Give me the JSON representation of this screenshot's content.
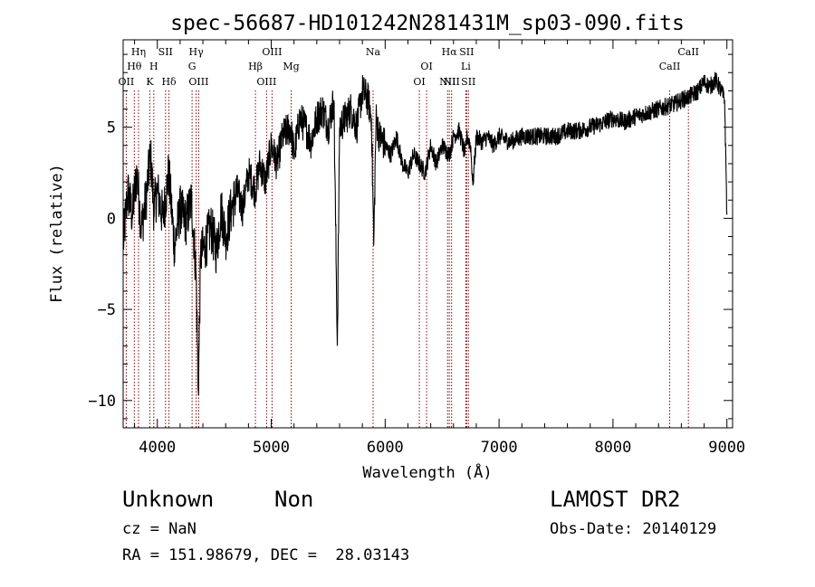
{
  "chart_data": {
    "type": "line",
    "title": "spec-56687-HD101242N281431M_sp03-090.fits",
    "xlabel": "Wavelength (Å)",
    "ylabel": "Flux (relative)",
    "xlim": [
      3700,
      9050
    ],
    "ylim": [
      -11.5,
      9.8
    ],
    "xticks": [
      4000,
      5000,
      6000,
      7000,
      8000,
      9000
    ],
    "yticks": [
      -10,
      -5,
      0,
      5
    ],
    "grid": false,
    "line_color": "#000000",
    "marker_color": "#8b0000",
    "series": [
      {
        "x": [
          3700,
          3740,
          3780,
          3820,
          3860,
          3900,
          3940,
          3970,
          4000,
          4050,
          4100,
          4150,
          4200,
          4250,
          4300,
          4340,
          4360,
          4380,
          4420,
          4470,
          4520,
          4560,
          4600,
          4650,
          4700,
          4750,
          4800,
          4860,
          4900,
          4950,
          5000,
          5050,
          5100,
          5170,
          5200,
          5250,
          5300,
          5350,
          5400,
          5450,
          5500,
          5550,
          5580,
          5600,
          5650,
          5700,
          5750,
          5800,
          5850,
          5880,
          5900,
          5920,
          5950,
          6000,
          6050,
          6100,
          6150,
          6200,
          6250,
          6300,
          6350,
          6400,
          6450,
          6500,
          6563,
          6600,
          6650,
          6700,
          6720,
          6750,
          6770,
          6800,
          6850,
          6900,
          6950,
          7000,
          7100,
          7200,
          7300,
          7400,
          7500,
          7600,
          7700,
          7800,
          7900,
          8000,
          8100,
          8200,
          8300,
          8400,
          8500,
          8550,
          8600,
          8650,
          8700,
          8750,
          8800,
          8850,
          8900,
          8950,
          8980,
          9000
        ],
        "y": [
          -1.5,
          1.5,
          0.2,
          2.5,
          -0.5,
          1.0,
          3.5,
          0.5,
          1.5,
          0.0,
          2.5,
          -1.5,
          0.5,
          -0.2,
          1.0,
          -3.0,
          -9.5,
          -2.0,
          -1.5,
          -0.5,
          -1.8,
          0.5,
          -1.0,
          0.5,
          1.5,
          0.5,
          2.5,
          1.5,
          3.0,
          2.0,
          4.0,
          3.0,
          4.5,
          5.0,
          3.5,
          5.5,
          5.0,
          4.2,
          5.5,
          6.0,
          5.0,
          6.5,
          -7.0,
          5.0,
          5.5,
          6.0,
          5.0,
          7.0,
          6.5,
          5.5,
          -1.5,
          5.5,
          4.5,
          4.0,
          3.5,
          4.5,
          3.0,
          2.5,
          3.5,
          3.0,
          2.5,
          4.0,
          3.0,
          4.0,
          3.5,
          4.5,
          4.8,
          3.5,
          4.5,
          4.0,
          1.8,
          4.5,
          4.2,
          4.5,
          4.0,
          4.5,
          4.2,
          4.5,
          4.5,
          4.5,
          4.5,
          4.8,
          4.8,
          5.0,
          5.2,
          5.5,
          5.3,
          5.6,
          5.8,
          6.0,
          6.2,
          6.3,
          6.5,
          6.6,
          6.8,
          7.0,
          7.5,
          7.2,
          7.6,
          7.0,
          6.5,
          0.2
        ]
      }
    ],
    "lines": [
      {
        "label": "OII",
        "x": 3727,
        "row": 3
      },
      {
        "label": "Hθ",
        "x": 3798,
        "row": 2
      },
      {
        "label": "Hη",
        "x": 3835,
        "row": 1
      },
      {
        "label": "K",
        "x": 3934,
        "row": 3
      },
      {
        "label": "H",
        "x": 3969,
        "row": 2
      },
      {
        "label": "SII",
        "x": 4072,
        "row": 1
      },
      {
        "label": "Hδ",
        "x": 4102,
        "row": 3
      },
      {
        "label": "G",
        "x": 4305,
        "row": 2
      },
      {
        "label": "Hγ",
        "x": 4341,
        "row": 1
      },
      {
        "label": "OIII",
        "x": 4363,
        "row": 3
      },
      {
        "label": "Hβ",
        "x": 4861,
        "row": 2
      },
      {
        "label": "OIII",
        "x": 4959,
        "row": 3
      },
      {
        "label": "OIII",
        "x": 5007,
        "row": 1
      },
      {
        "label": "Mg",
        "x": 5175,
        "row": 2
      },
      {
        "label": "Na",
        "x": 5894,
        "row": 1
      },
      {
        "label": "OI",
        "x": 6300,
        "row": 3
      },
      {
        "label": "OI",
        "x": 6364,
        "row": 2
      },
      {
        "label": "NII",
        "x": 6548,
        "row": 3
      },
      {
        "label": "Hα",
        "x": 6563,
        "row": 1
      },
      {
        "label": "NII",
        "x": 6583,
        "row": 3
      },
      {
        "label": "Li",
        "x": 6708,
        "row": 2
      },
      {
        "label": "SII",
        "x": 6716,
        "row": 1
      },
      {
        "label": "SII",
        "x": 6731,
        "row": 3
      },
      {
        "label": "CaII",
        "x": 8498,
        "row": 2
      },
      {
        "label": "CaII",
        "x": 8662,
        "row": 1
      }
    ]
  },
  "info": {
    "class": "Unknown",
    "subclass": "Non",
    "cz": "cz = NaN",
    "radec": "RA = 151.98679, DEC =  28.03143",
    "survey": "LAMOST DR2",
    "obsdate": "Obs-Date: 20140129"
  }
}
